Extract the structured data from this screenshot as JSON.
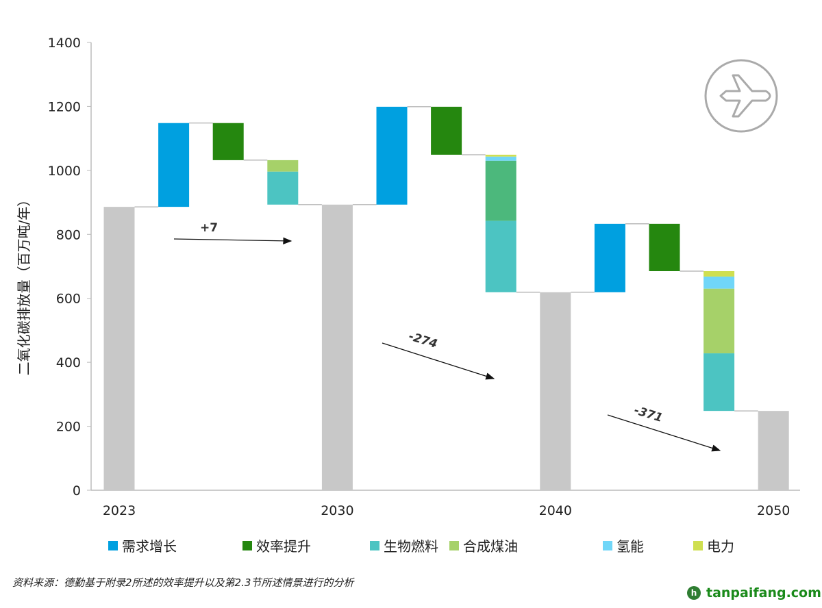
{
  "chart_data": {
    "type": "waterfall",
    "ylabel": "二氧化碳排放量（百万吨/年）",
    "ylim": [
      0,
      1400
    ],
    "yticks": [
      0,
      200,
      400,
      600,
      800,
      1000,
      1200,
      1400
    ],
    "colors": {
      "total": "#c8c8c8",
      "需求增长": "#00a0e0",
      "效率提升": "#25870f",
      "生物燃料": "#4cc4c2",
      "合成煤油": "#a6d169",
      "氢能": "#70d6f8",
      "电力": "#cfdf50",
      "合成煤油_2040": "#4cb87c"
    },
    "totals": [
      {
        "label": "2023",
        "value": 886
      },
      {
        "label": "2030",
        "value": 893
      },
      {
        "label": "2040",
        "value": 619
      },
      {
        "label": "2050",
        "value": 248
      }
    ],
    "steps": [
      {
        "period": "2023-2030",
        "changes": [
          {
            "cat": "需求增长",
            "from": 886,
            "to": 1148
          },
          {
            "cat": "效率提升",
            "from": 1148,
            "to": 1032
          },
          {
            "cat": "合成煤油",
            "from": 1032,
            "to": 996
          },
          {
            "cat": "生物燃料",
            "from": 996,
            "to": 893
          }
        ]
      },
      {
        "period": "2030-2040",
        "changes": [
          {
            "cat": "需求增长",
            "from": 893,
            "to": 1199
          },
          {
            "cat": "效率提升",
            "from": 1199,
            "to": 1049
          },
          {
            "cat": "电力",
            "from": 1049,
            "to": 1043
          },
          {
            "cat": "氢能",
            "from": 1043,
            "to": 1030
          },
          {
            "cat": "合成煤油_2040",
            "from": 1030,
            "to": 842
          },
          {
            "cat": "生物燃料",
            "from": 842,
            "to": 619
          }
        ]
      },
      {
        "period": "2040-2050",
        "changes": [
          {
            "cat": "需求增长",
            "from": 619,
            "to": 833
          },
          {
            "cat": "效率提升",
            "from": 833,
            "to": 685
          },
          {
            "cat": "电力",
            "from": 685,
            "to": 668
          },
          {
            "cat": "氢能",
            "from": 668,
            "to": 630
          },
          {
            "cat": "合成煤油",
            "from": 630,
            "to": 428
          },
          {
            "cat": "生物燃料",
            "from": 428,
            "to": 248
          }
        ]
      }
    ],
    "annotations": [
      "+7",
      "-274",
      "-371"
    ],
    "legend": [
      "需求增长",
      "效率提升",
      "生物燃料",
      "合成煤油",
      "氢能",
      "电力"
    ]
  },
  "source": "资料来源：德勤基于附录2所述的效率提升以及第2.3节所述情景进行的分析",
  "watermark": "tanpaifang.com"
}
